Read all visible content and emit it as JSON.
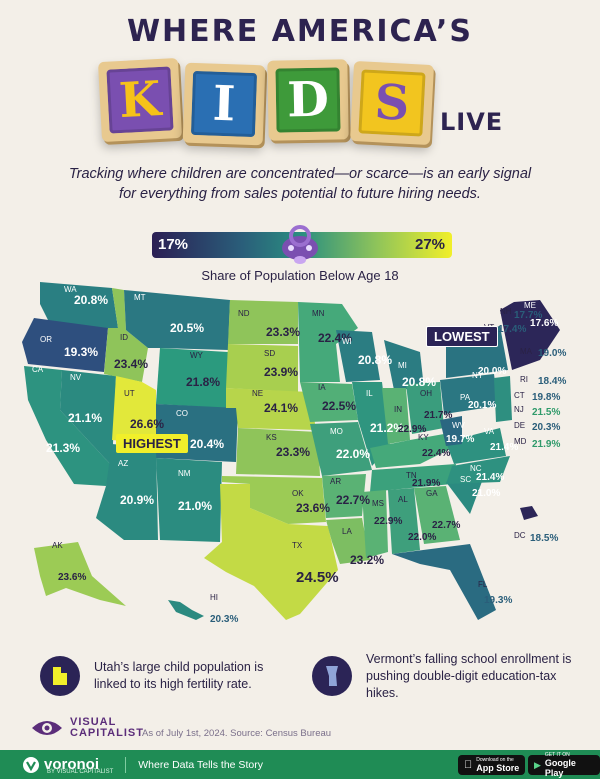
{
  "header": {
    "title_top": "WHERE AMERICA’S",
    "blocks": [
      "K",
      "I",
      "D",
      "S"
    ],
    "title_end": "LIVE",
    "subtitle": "Tracking where children are concentrated—or scarce—is an early signal for everything from sales potential to future hiring needs."
  },
  "legend": {
    "low": "17%",
    "high": "27%",
    "label": "Share of Population Below Age 18"
  },
  "callouts": {
    "lowest": "LOWEST",
    "highest": "HIGHEST"
  },
  "states": [
    {
      "abbr": "WA",
      "value": "20.8%"
    },
    {
      "abbr": "OR",
      "value": "19.3%"
    },
    {
      "abbr": "CA",
      "value": "21.3%"
    },
    {
      "abbr": "NV",
      "value": "21.1%"
    },
    {
      "abbr": "ID",
      "value": "23.4%"
    },
    {
      "abbr": "MT",
      "value": "20.5%"
    },
    {
      "abbr": "WY",
      "value": "21.8%"
    },
    {
      "abbr": "UT",
      "value": "26.6%"
    },
    {
      "abbr": "AZ",
      "value": "20.9%"
    },
    {
      "abbr": "CO",
      "value": "20.4%"
    },
    {
      "abbr": "NM",
      "value": "21.0%"
    },
    {
      "abbr": "ND",
      "value": "23.3%"
    },
    {
      "abbr": "SD",
      "value": "23.9%"
    },
    {
      "abbr": "NE",
      "value": "24.1%"
    },
    {
      "abbr": "KS",
      "value": "23.3%"
    },
    {
      "abbr": "OK",
      "value": "23.6%"
    },
    {
      "abbr": "TX",
      "value": "24.5%"
    },
    {
      "abbr": "MN",
      "value": "22.4%"
    },
    {
      "abbr": "IA",
      "value": "22.5%"
    },
    {
      "abbr": "MO",
      "value": "22.0%"
    },
    {
      "abbr": "AR",
      "value": "22.7%"
    },
    {
      "abbr": "LA",
      "value": "23.2%"
    },
    {
      "abbr": "WI",
      "value": "20.8%"
    },
    {
      "abbr": "IL",
      "value": "21.2%"
    },
    {
      "abbr": "MI",
      "value": "20.8%"
    },
    {
      "abbr": "IN",
      "value": "22.9%"
    },
    {
      "abbr": "OH",
      "value": "21.7%"
    },
    {
      "abbr": "KY",
      "value": "22.4%"
    },
    {
      "abbr": "TN",
      "value": "21.9%"
    },
    {
      "abbr": "MS",
      "value": "22.9%"
    },
    {
      "abbr": "AL",
      "value": "22.0%"
    },
    {
      "abbr": "GA",
      "value": "22.7%"
    },
    {
      "abbr": "FL",
      "value": "19.3%"
    },
    {
      "abbr": "SC",
      "value": "21.0%"
    },
    {
      "abbr": "NC",
      "value": "21.4%"
    },
    {
      "abbr": "VA",
      "value": "21.4%"
    },
    {
      "abbr": "WV",
      "value": "19.7%"
    },
    {
      "abbr": "PA",
      "value": "20.1%"
    },
    {
      "abbr": "NY",
      "value": "20.0%"
    },
    {
      "abbr": "VT",
      "value": "17.4%"
    },
    {
      "abbr": "NH",
      "value": "17.7%"
    },
    {
      "abbr": "ME",
      "value": "17.6%"
    },
    {
      "abbr": "MA",
      "value": "19.0%"
    },
    {
      "abbr": "RI",
      "value": "18.4%"
    },
    {
      "abbr": "CT",
      "value": "19.8%"
    },
    {
      "abbr": "NJ",
      "value": "21.5%"
    },
    {
      "abbr": "DE",
      "value": "20.3%"
    },
    {
      "abbr": "MD",
      "value": "21.9%"
    },
    {
      "abbr": "DC",
      "value": "18.5%"
    },
    {
      "abbr": "AK",
      "value": "23.6%"
    },
    {
      "abbr": "HI",
      "value": "20.3%"
    }
  ],
  "notes": [
    {
      "icon": "utah-icon",
      "text": "Utah’s large child population is linked to its high fertility rate."
    },
    {
      "icon": "vermont-icon",
      "text": "Vermont’s falling school enrollment is pushing double-digit education-tax hikes."
    }
  ],
  "branding": {
    "publisher_line1": "VISUAL",
    "publisher_line2": "CAPITALIST",
    "source": "As of July 1st, 2024. Source: Census Bureau",
    "app_name": "voronoi",
    "app_sub": "BY VISUAL CAPITALIST",
    "tagline": "Where Data Tells the Story",
    "app_store_small": "Download on the",
    "app_store_big": "App Store",
    "play_small": "GET IT ON",
    "play_big": "Google Play"
  },
  "colors": {
    "low": "#2b1f54",
    "high": "#f1ef2a",
    "accent_purple": "#6a3ea1",
    "footer_green": "#1f8c55"
  }
}
